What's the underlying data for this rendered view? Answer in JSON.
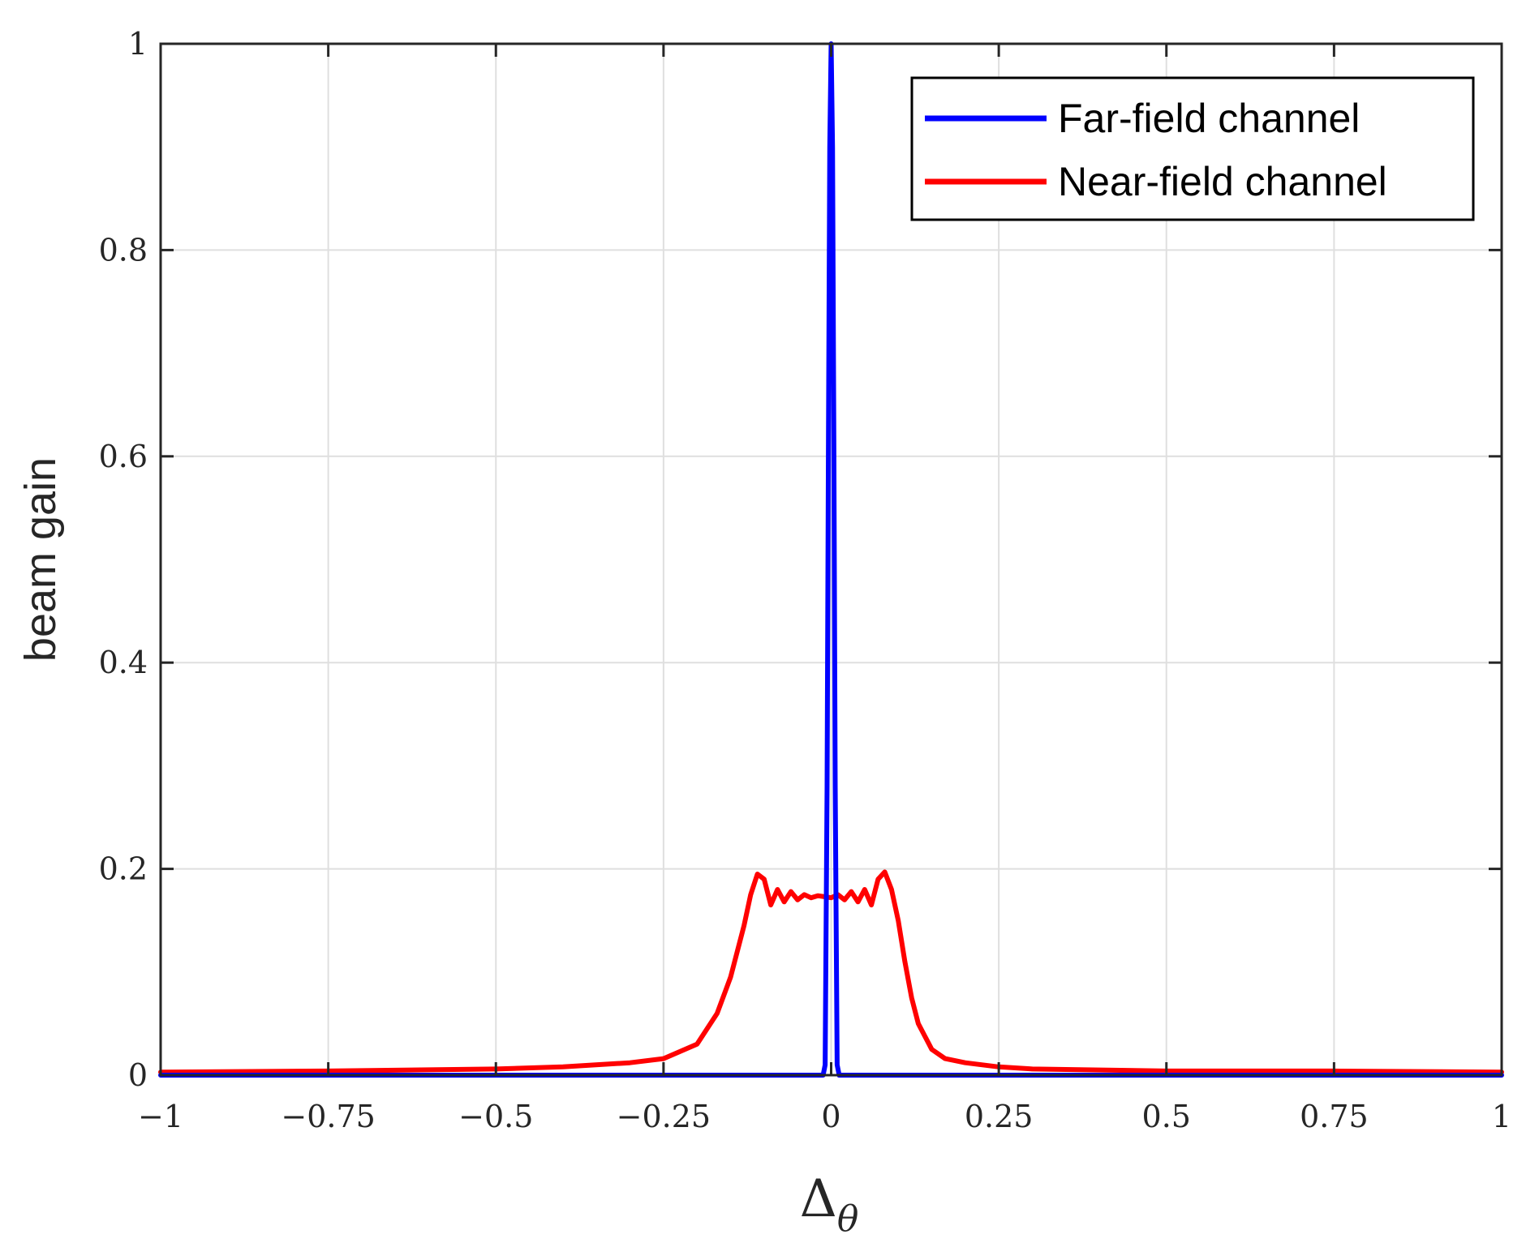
{
  "chart_data": {
    "type": "line",
    "xlabel": "Δ",
    "xlabel_subscript": "θ",
    "ylabel": "beam gain",
    "xlim": [
      -1,
      1
    ],
    "ylim": [
      0,
      1
    ],
    "grid": true,
    "legend_position": "top-right",
    "x_ticks": [
      -1,
      -0.75,
      -0.5,
      -0.25,
      0,
      0.25,
      0.5,
      0.75,
      1
    ],
    "x_tick_labels": [
      "−1",
      "−0.75",
      "−0.5",
      "−0.25",
      "0",
      "0.25",
      "0.5",
      "0.75",
      "1"
    ],
    "y_ticks": [
      0,
      0.2,
      0.4,
      0.6,
      0.8,
      1
    ],
    "y_tick_labels": [
      "0",
      "0.2",
      "0.4",
      "0.6",
      "0.8",
      "1"
    ],
    "series": [
      {
        "name": "Far-field channel",
        "color": "#0000ff",
        "x": [
          -1,
          -0.012,
          -0.009,
          -0.006,
          -0.004,
          -0.002,
          0,
          0.002,
          0.004,
          0.006,
          0.009,
          0.012,
          1
        ],
        "y": [
          0,
          0,
          0.01,
          0.28,
          0.62,
          0.9,
          1,
          0.9,
          0.62,
          0.28,
          0.01,
          0,
          0
        ]
      },
      {
        "name": "Near-field channel",
        "color": "#ff0000",
        "x": [
          -1,
          -0.75,
          -0.5,
          -0.4,
          -0.3,
          -0.25,
          -0.2,
          -0.17,
          -0.15,
          -0.13,
          -0.12,
          -0.11,
          -0.1,
          -0.09,
          -0.08,
          -0.07,
          -0.06,
          -0.05,
          -0.04,
          -0.03,
          -0.02,
          -0.01,
          0,
          0.01,
          0.02,
          0.03,
          0.04,
          0.05,
          0.06,
          0.07,
          0.08,
          0.09,
          0.1,
          0.11,
          0.12,
          0.13,
          0.15,
          0.17,
          0.2,
          0.25,
          0.3,
          0.4,
          0.5,
          0.75,
          1
        ],
        "y": [
          0.003,
          0.004,
          0.006,
          0.008,
          0.012,
          0.016,
          0.03,
          0.06,
          0.095,
          0.145,
          0.175,
          0.195,
          0.19,
          0.165,
          0.18,
          0.168,
          0.178,
          0.17,
          0.175,
          0.172,
          0.174,
          0.173,
          0.172,
          0.175,
          0.17,
          0.178,
          0.168,
          0.18,
          0.165,
          0.19,
          0.197,
          0.18,
          0.15,
          0.11,
          0.075,
          0.05,
          0.025,
          0.016,
          0.012,
          0.008,
          0.006,
          0.005,
          0.004,
          0.004,
          0.003
        ]
      }
    ]
  }
}
